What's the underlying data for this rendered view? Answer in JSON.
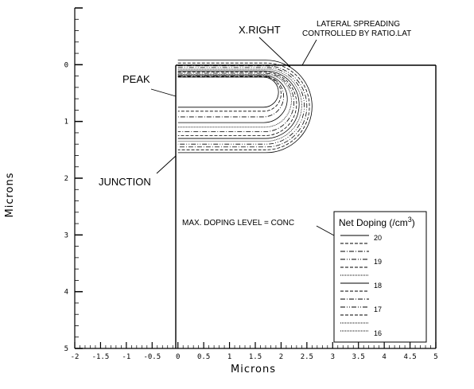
{
  "chart_data": {
    "type": "contour",
    "xlabel": "Microns",
    "ylabel": "Microns",
    "xlim": [
      -2,
      5
    ],
    "ylim": [
      5,
      -1
    ],
    "x_ticks": [
      "-2",
      "-1.5",
      "-1",
      "-0.5",
      "0",
      "0.5",
      "1",
      "1.5",
      "2",
      "2.5",
      "3",
      "3.5",
      "4",
      "4.5",
      "5"
    ],
    "y_ticks": [
      "0",
      "1",
      "2",
      "3",
      "4",
      "5"
    ],
    "annotations": {
      "x_right": "X.RIGHT",
      "lateral_line1": "LATERAL SPREADING",
      "lateral_line2": "CONTROLLED BY RATIO.LAT",
      "peak": "PEAK",
      "junction": "JUNCTION",
      "max_doping": "MAX. DOPING LEVEL = CONC"
    },
    "legend": {
      "title": "Net Doping (/cm",
      "title_sup": "3",
      "title_close": ")",
      "values": [
        "20",
        "19",
        "18",
        "17",
        "16"
      ]
    },
    "contours": [
      {
        "dash": "",
        "top": -0.08,
        "bottom": 1.55,
        "right": 2.6
      },
      {
        "dash": "4,2",
        "top": -0.03,
        "bottom": 1.5,
        "right": 2.55
      },
      {
        "dash": "6,2,1,2",
        "top": 0.02,
        "bottom": 1.45,
        "right": 2.5
      },
      {
        "dash": "6,2,1,2,1,2",
        "top": 0.05,
        "bottom": 1.4,
        "right": 2.45
      },
      {
        "dash": "1,1",
        "top": 0.08,
        "bottom": 1.35,
        "right": 2.4
      },
      {
        "dash": "",
        "top": 0.11,
        "bottom": 1.3,
        "right": 2.35
      },
      {
        "dash": "4,2",
        "top": 0.13,
        "bottom": 1.25,
        "right": 2.3
      },
      {
        "dash": "6,2,1,2",
        "top": 0.15,
        "bottom": 1.18,
        "right": 2.25
      },
      {
        "dash": "1,1",
        "top": 0.17,
        "bottom": 1.1,
        "right": 2.2
      },
      {
        "dash": "",
        "top": 0.19,
        "bottom": 1.02,
        "right": 2.12
      },
      {
        "dash": "6,2,1,2",
        "top": 0.2,
        "bottom": 0.92,
        "right": 2.05
      },
      {
        "dash": "4,2",
        "top": 0.21,
        "bottom": 0.82,
        "right": 2.0
      },
      {
        "dash": "",
        "top": 0.22,
        "bottom": 0.75,
        "right": 1.95
      }
    ]
  }
}
